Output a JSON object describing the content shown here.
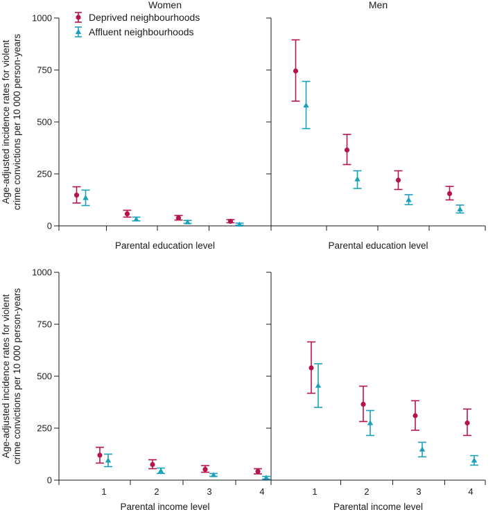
{
  "colors": {
    "deprived": "#b5144f",
    "affluent": "#1aa0b8",
    "axis": "#1a1a1a"
  },
  "legend": [
    {
      "key": "deprived",
      "label": "Deprived neighbourhoods",
      "marker": "circle"
    },
    {
      "key": "affluent",
      "label": "Affluent neighbourhoods",
      "marker": "triangle"
    }
  ],
  "y_axis_title_line1": "Age-adjusted incidence rates for violent",
  "y_axis_title_line2": "crime convictions per 10 000 person-years",
  "chart_data": [
    {
      "type": "scatter",
      "title": "Women",
      "xlabel": "Parental education level",
      "categories": [
        "1",
        "2",
        "3",
        "4"
      ],
      "show_x_ticklabels": false,
      "show_y_ticklabels": true,
      "ylim": [
        0,
        1000
      ],
      "yticks": [
        "0",
        "250",
        "500",
        "750",
        "1000"
      ],
      "series": [
        {
          "name": "Deprived neighbourhoods",
          "values": [
            148,
            58,
            38,
            22
          ],
          "lower": [
            110,
            42,
            28,
            15
          ],
          "upper": [
            188,
            75,
            50,
            30
          ]
        },
        {
          "name": "Affluent neighbourhoods",
          "values": [
            135,
            32,
            18,
            7
          ],
          "lower": [
            98,
            24,
            12,
            3
          ],
          "upper": [
            172,
            42,
            26,
            13
          ]
        }
      ]
    },
    {
      "type": "scatter",
      "title": "Men",
      "xlabel": "Parental education level",
      "categories": [
        "1",
        "2",
        "3",
        "4"
      ],
      "show_x_ticklabels": false,
      "show_y_ticklabels": false,
      "ylim": [
        0,
        1000
      ],
      "series": [
        {
          "name": "Deprived neighbourhoods",
          "values": [
            745,
            365,
            220,
            155
          ],
          "lower": [
            600,
            295,
            175,
            125
          ],
          "upper": [
            895,
            440,
            265,
            190
          ]
        },
        {
          "name": "Affluent neighbourhoods",
          "values": [
            580,
            225,
            125,
            80
          ],
          "lower": [
            468,
            180,
            102,
            62
          ],
          "upper": [
            695,
            265,
            150,
            100
          ]
        }
      ]
    },
    {
      "type": "scatter",
      "title": "",
      "xlabel": "Parental income level",
      "categories": [
        "1",
        "2",
        "3",
        "4"
      ],
      "show_x_ticklabels": true,
      "show_y_ticklabels": true,
      "ylim": [
        0,
        1000
      ],
      "yticks": [
        "0",
        "250",
        "500",
        "750",
        "1000"
      ],
      "series": [
        {
          "name": "Deprived neighbourhoods",
          "values": [
            120,
            75,
            52,
            42
          ],
          "lower": [
            82,
            55,
            38,
            30
          ],
          "upper": [
            158,
            98,
            70,
            55
          ]
        },
        {
          "name": "Affluent neighbourhoods",
          "values": [
            95,
            45,
            25,
            12
          ],
          "lower": [
            65,
            32,
            18,
            5
          ],
          "upper": [
            125,
            58,
            32,
            18
          ]
        }
      ]
    },
    {
      "type": "scatter",
      "title": "",
      "xlabel": "Parental income level",
      "categories": [
        "1",
        "2",
        "3",
        "4"
      ],
      "show_x_ticklabels": true,
      "show_y_ticklabels": false,
      "ylim": [
        0,
        1000
      ],
      "series": [
        {
          "name": "Deprived neighbourhoods",
          "values": [
            540,
            365,
            310,
            275
          ],
          "lower": [
            418,
            282,
            240,
            215
          ],
          "upper": [
            665,
            452,
            382,
            342
          ]
        },
        {
          "name": "Affluent neighbourhoods",
          "values": [
            455,
            275,
            148,
            95
          ],
          "lower": [
            350,
            215,
            112,
            72
          ],
          "upper": [
            560,
            335,
            182,
            118
          ]
        }
      ]
    }
  ]
}
